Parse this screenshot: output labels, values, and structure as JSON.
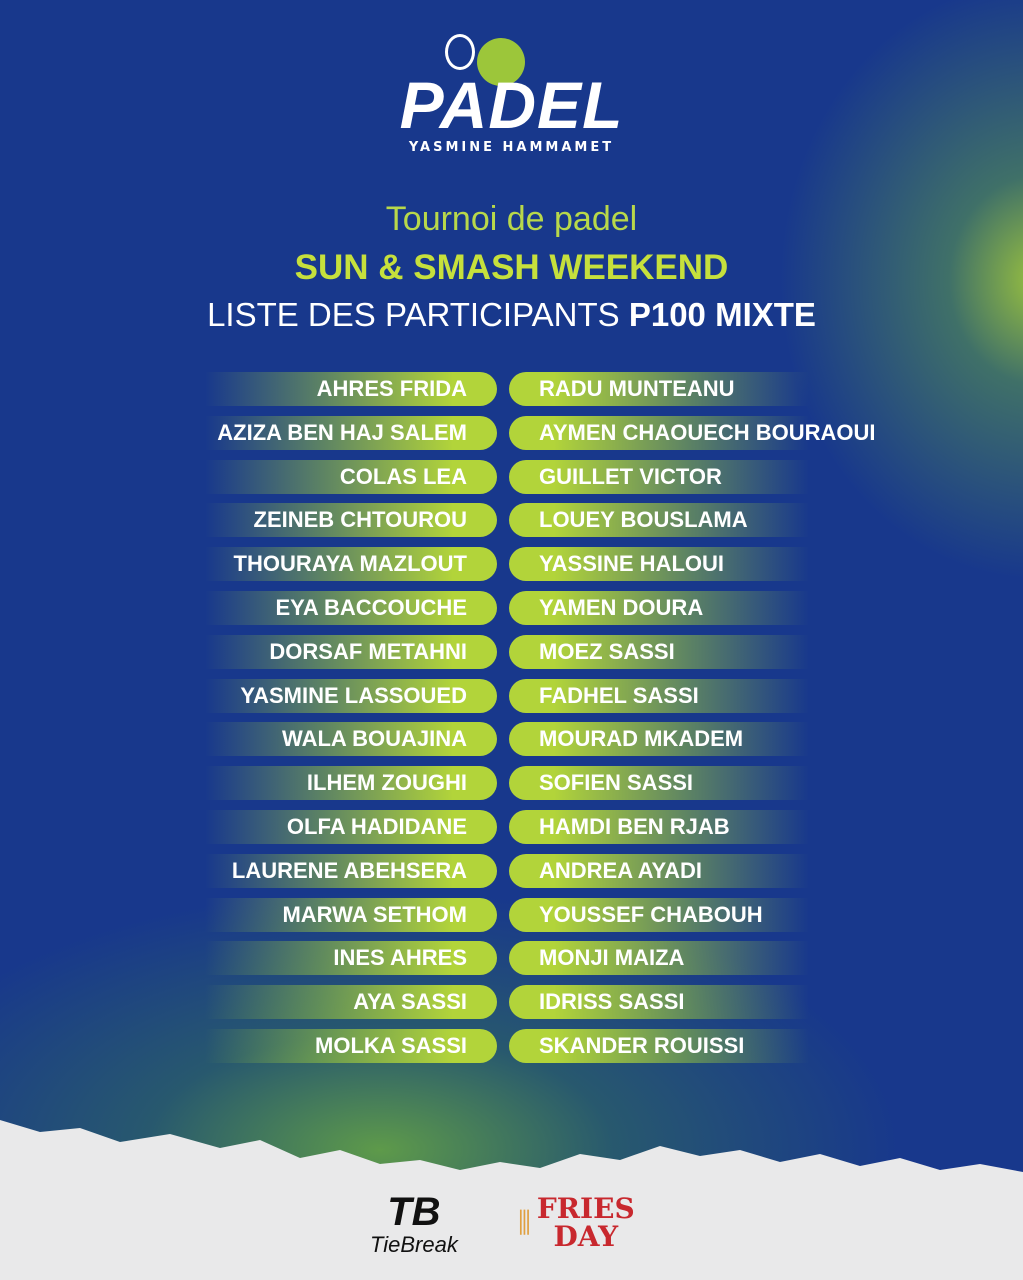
{
  "logo": {
    "word": "PADEL",
    "subtitle": "YASMINE HAMMAMET"
  },
  "heading": {
    "line1": "Tournoi de padel",
    "line2": "SUN & SMASH WEEKEND",
    "line3_prefix": "LISTE DES PARTICIPANTS",
    "line3_bold": "P100 MIXTE"
  },
  "pairs": [
    {
      "left": "AHRES FRIDA",
      "right": "RADU MUNTEANU"
    },
    {
      "left": "AZIZA BEN HAJ SALEM",
      "right": "AYMEN CHAOUECH BOURAOUI"
    },
    {
      "left": "COLAS LEA",
      "right": "GUILLET VICTOR"
    },
    {
      "left": "ZEINEB CHTOUROU",
      "right": "LOUEY BOUSLAMA"
    },
    {
      "left": "THOURAYA MAZLOUT",
      "right": "YASSINE HALOUI"
    },
    {
      "left": "EYA BACCOUCHE",
      "right": "YAMEN DOURA"
    },
    {
      "left": "DORSAF METAHNI",
      "right": "MOEZ SASSI"
    },
    {
      "left": "YASMINE LASSOUED",
      "right": "FADHEL SASSI"
    },
    {
      "left": "WALA BOUAJINA",
      "right": "MOURAD MKADEM"
    },
    {
      "left": "ILHEM ZOUGHI",
      "right": "SOFIEN SASSI"
    },
    {
      "left": "OLFA HADIDANE",
      "right": "HAMDI BEN RJAB"
    },
    {
      "left": "LAURENE ABEHSERA",
      "right": "ANDREA AYADI"
    },
    {
      "left": "MARWA SETHOM",
      "right": "YOUSSEF CHABOUH"
    },
    {
      "left": "INES AHRES",
      "right": "MONJI MAIZA"
    },
    {
      "left": "AYA SASSI",
      "right": "IDRISS SASSI"
    },
    {
      "left": "MOLKA SASSI",
      "right": "SKANDER ROUISSI"
    }
  ],
  "sponsors": {
    "tiebreak_mark": "TB",
    "tiebreak_name": "TieBreak",
    "friesday_line1": "FRIES",
    "friesday_line2": "DAY"
  },
  "colors": {
    "background": "#18388c",
    "accent": "#b2d43a",
    "title": "#c6e03c",
    "fries": "#c8282e"
  }
}
